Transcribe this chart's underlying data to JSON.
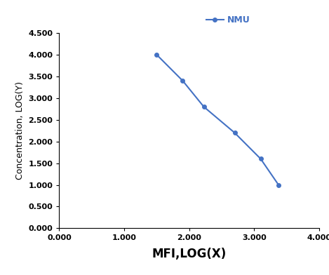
{
  "x": [
    1.5,
    1.9,
    2.225,
    2.7,
    3.1,
    3.375
  ],
  "y": [
    4.0,
    3.4,
    2.8,
    2.2,
    1.6,
    1.0
  ],
  "line_color": "#4472C4",
  "marker": "o",
  "marker_size": 4,
  "line_width": 1.5,
  "legend_label": "NMU",
  "xlabel": "MFI,LOG(X)",
  "ylabel": "Concentration, LOG(Y)",
  "xlim": [
    0.0,
    4.0
  ],
  "ylim": [
    0.0,
    4.5
  ],
  "xticks": [
    0.0,
    1.0,
    2.0,
    3.0,
    4.0
  ],
  "yticks": [
    0.0,
    0.5,
    1.0,
    1.5,
    2.0,
    2.5,
    3.0,
    3.5,
    4.0,
    4.5
  ],
  "background_color": "#ffffff",
  "xlabel_fontsize": 12,
  "ylabel_fontsize": 9,
  "tick_fontsize": 8,
  "legend_fontsize": 9
}
